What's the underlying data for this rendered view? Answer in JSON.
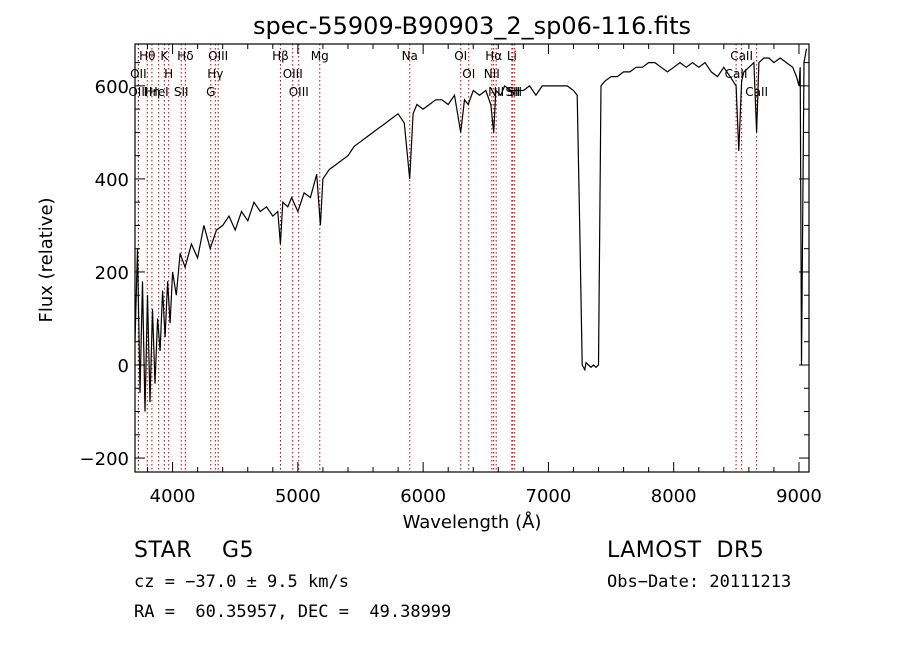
{
  "chart_data": {
    "type": "line",
    "title": "spec-55909-B90903_2_sp06-116.fits",
    "xlabel": "Wavelength (Å)",
    "ylabel": "Flux (relative)",
    "xlim": [
      3700,
      9080
    ],
    "ylim": [
      -230,
      690
    ],
    "xticks": [
      4000,
      5000,
      6000,
      7000,
      8000,
      9000
    ],
    "yticks": [
      -200,
      0,
      200,
      400,
      600
    ],
    "grid": false,
    "series": [
      {
        "x": [
          3700,
          3720,
          3740,
          3760,
          3780,
          3800,
          3820,
          3840,
          3860,
          3880,
          3900,
          3920,
          3940,
          3960,
          3980,
          4000,
          4030,
          4060,
          4100,
          4150,
          4200,
          4250,
          4300,
          4350,
          4400,
          4450,
          4500,
          4550,
          4600,
          4650,
          4700,
          4750,
          4800,
          4840,
          4861,
          4880,
          4920,
          4950,
          5000,
          5050,
          5100,
          5150,
          5180,
          5200,
          5250,
          5300,
          5350,
          5400,
          5450,
          5500,
          5550,
          5600,
          5650,
          5700,
          5750,
          5800,
          5850,
          5893,
          5920,
          5950,
          6000,
          6050,
          6100,
          6150,
          6200,
          6250,
          6300,
          6330,
          6360,
          6400,
          6450,
          6500,
          6540,
          6563,
          6580,
          6620,
          6650,
          6700,
          6750,
          6800,
          6850,
          6900,
          6950,
          7000,
          7050,
          7100,
          7150,
          7200,
          7230,
          7250,
          7270,
          7290,
          7300,
          7320,
          7340,
          7360,
          7380,
          7400,
          7420,
          7450,
          7500,
          7550,
          7600,
          7650,
          7700,
          7750,
          7800,
          7850,
          7900,
          7950,
          8000,
          8050,
          8100,
          8150,
          8200,
          8250,
          8300,
          8350,
          8400,
          8450,
          8498,
          8520,
          8542,
          8560,
          8600,
          8640,
          8662,
          8680,
          8720,
          8760,
          8800,
          8850,
          8900,
          8950,
          8980,
          9000,
          9010,
          9020,
          9040,
          9060
        ],
        "y": [
          50,
          250,
          -60,
          180,
          -100,
          150,
          -80,
          120,
          -40,
          100,
          30,
          160,
          60,
          180,
          90,
          200,
          150,
          240,
          210,
          260,
          230,
          300,
          250,
          290,
          300,
          320,
          290,
          330,
          310,
          350,
          330,
          340,
          320,
          330,
          260,
          350,
          340,
          360,
          330,
          370,
          360,
          410,
          300,
          400,
          420,
          430,
          440,
          450,
          470,
          480,
          490,
          500,
          510,
          520,
          530,
          540,
          520,
          400,
          540,
          560,
          550,
          560,
          570,
          570,
          560,
          580,
          500,
          570,
          560,
          590,
          580,
          590,
          560,
          500,
          590,
          580,
          600,
          590,
          590,
          590,
          600,
          580,
          600,
          600,
          600,
          600,
          600,
          590,
          580,
          300,
          0,
          -10,
          5,
          0,
          -5,
          0,
          -5,
          0,
          600,
          610,
          620,
          620,
          630,
          630,
          640,
          640,
          650,
          650,
          640,
          630,
          640,
          650,
          640,
          650,
          640,
          650,
          630,
          620,
          640,
          620,
          600,
          460,
          610,
          630,
          640,
          650,
          500,
          650,
          660,
          660,
          650,
          660,
          650,
          640,
          620,
          600,
          640,
          0,
          650,
          680
        ]
      }
    ],
    "line_markers": [
      {
        "label": "Hθ",
        "x": 3798
      },
      {
        "label": "OII",
        "x": 3727
      },
      {
        "label": "OIII",
        "x": 3727
      },
      {
        "label": "K",
        "x": 3934
      },
      {
        "label": "HeI",
        "x": 3889
      },
      {
        "label": "Hη",
        "x": 3835
      },
      {
        "label": "H",
        "x": 3969
      },
      {
        "label": "Hδ",
        "x": 4102
      },
      {
        "label": "SII",
        "x": 4069
      },
      {
        "label": "OIII",
        "x": 4364
      },
      {
        "label": "Hγ",
        "x": 4341
      },
      {
        "label": "G",
        "x": 4305
      },
      {
        "label": "Hβ",
        "x": 4861
      },
      {
        "label": "OIII",
        "x": 4959
      },
      {
        "label": "OIII",
        "x": 5007
      },
      {
        "label": "Mg",
        "x": 5175
      },
      {
        "label": "Na",
        "x": 5893
      },
      {
        "label": "OI",
        "x": 6300
      },
      {
        "label": "OI",
        "x": 6364
      },
      {
        "label": "Hα",
        "x": 6563
      },
      {
        "label": "NII",
        "x": 6548
      },
      {
        "label": "NII",
        "x": 6583
      },
      {
        "label": "SII",
        "x": 6716
      },
      {
        "label": "Li",
        "x": 6708
      },
      {
        "label": "SII",
        "x": 6731
      },
      {
        "label": "CaII",
        "x": 8542
      },
      {
        "label": "CaII",
        "x": 8498
      },
      {
        "label": "CaII",
        "x": 8662
      }
    ]
  },
  "info": {
    "obj_class": "STAR    G5",
    "survey": "LAMOST  DR5",
    "cz": "cz = −37.0 ± 9.5 km/s",
    "obs_date": "Obs−Date: 20111213",
    "radec": "RA =  60.35957, DEC =  49.38999"
  }
}
